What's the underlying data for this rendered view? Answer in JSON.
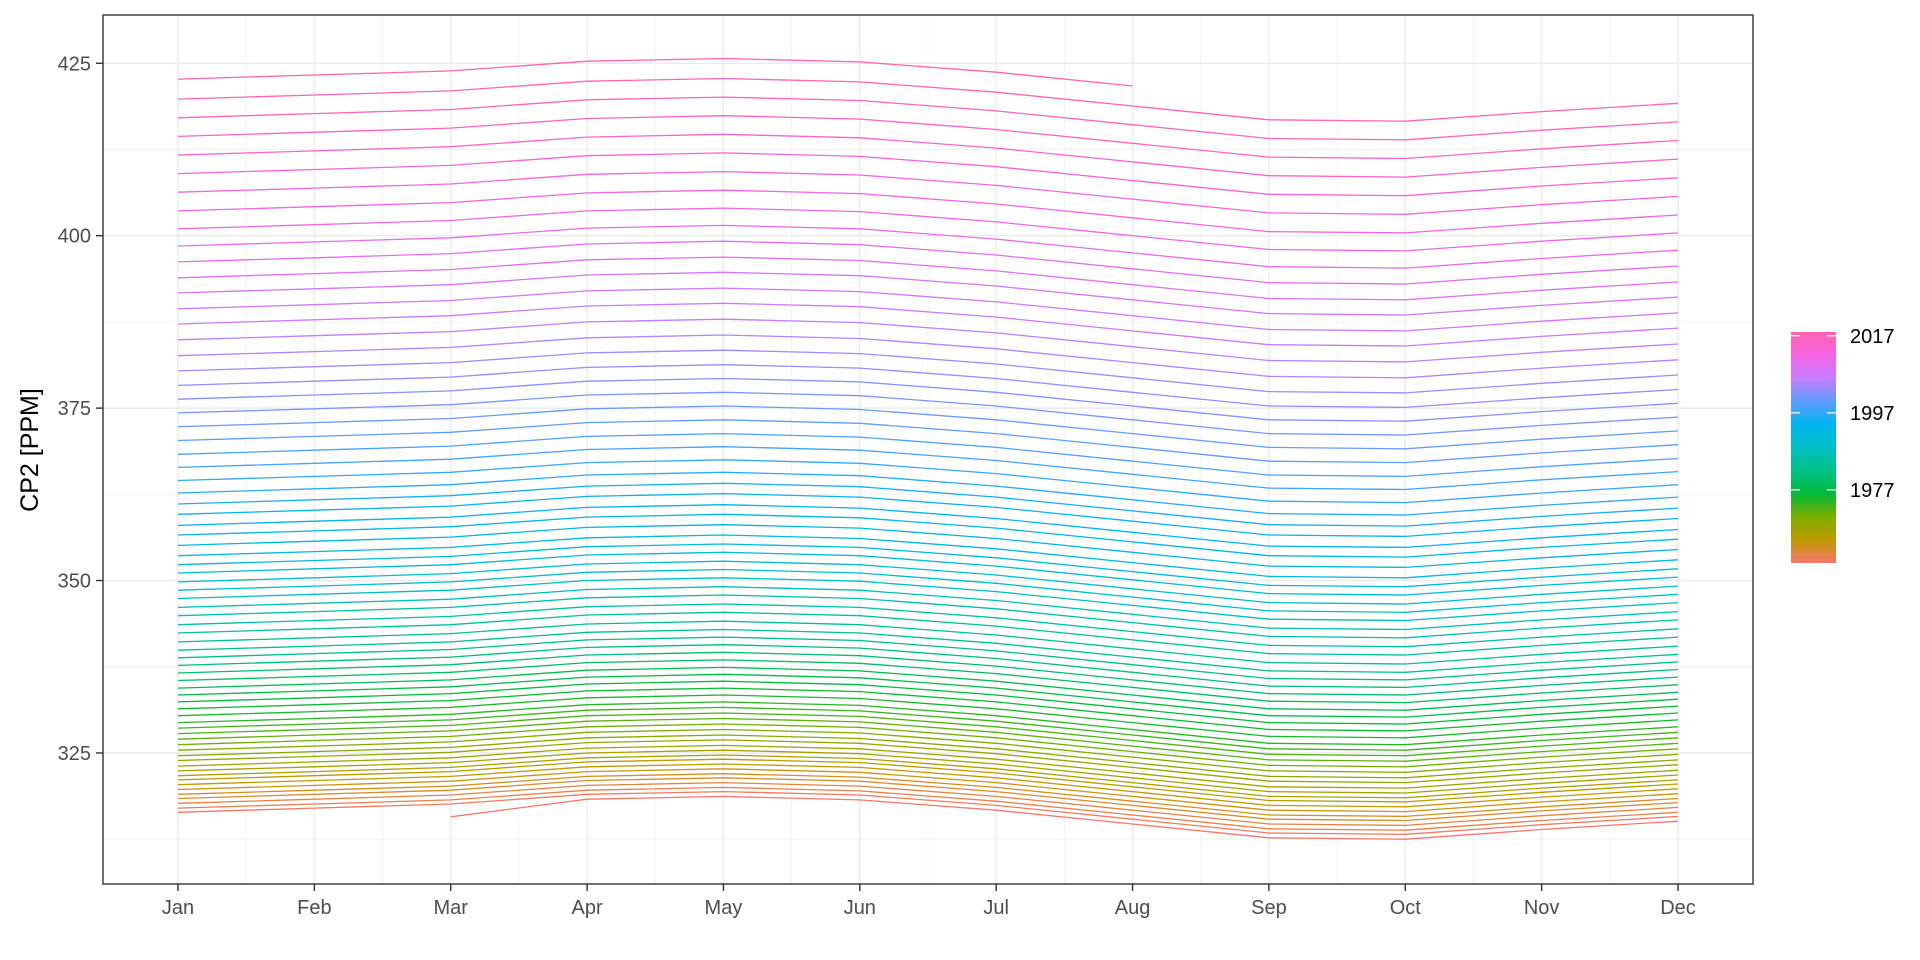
{
  "chart_data": {
    "type": "line",
    "title": "",
    "xlabel": "",
    "ylabel": "CP2 [PPM]",
    "categories": [
      "Jan",
      "Feb",
      "Mar",
      "Apr",
      "May",
      "Jun",
      "Jul",
      "Aug",
      "Sep",
      "Oct",
      "Nov",
      "Dec"
    ],
    "ylim": [
      306,
      432
    ],
    "yticks": [
      325,
      350,
      375,
      400,
      425
    ],
    "grid": true,
    "legend": {
      "type": "colorbar",
      "placement": "right",
      "range": [
        1958,
        2018
      ],
      "labels": [
        "2017",
        "1997",
        "1977"
      ],
      "label_values": [
        2017,
        1997,
        1977
      ],
      "colors": [
        "#F8766D",
        "#C09B00",
        "#7CAE00",
        "#00BA38",
        "#00C08B",
        "#00BFC4",
        "#00B4F0",
        "#619CFF",
        "#C77CFF",
        "#F564E3",
        "#FF64B0"
      ]
    },
    "seasonal_offsets": [
      0.0,
      0.6,
      1.2,
      2.6,
      3.0,
      2.5,
      1.0,
      -1.0,
      -3.0,
      -3.2,
      -1.8,
      -0.6
    ],
    "series_jan_values": [
      315.7,
      316.4,
      317.0,
      317.7,
      318.4,
      319.0,
      319.7,
      320.4,
      321.1,
      321.7,
      322.4,
      323.1,
      323.9,
      324.6,
      325.4,
      326.2,
      327.0,
      327.8,
      328.6,
      329.4,
      330.4,
      331.4,
      332.4,
      333.4,
      334.4,
      335.5,
      336.6,
      337.7,
      338.8,
      339.9,
      341.1,
      342.4,
      343.6,
      344.9,
      346.1,
      347.4,
      348.6,
      349.8,
      351.1,
      352.3,
      353.6,
      355.1,
      356.6,
      358.0,
      359.6,
      361.1,
      362.7,
      364.5,
      366.4,
      368.3,
      370.3,
      372.3,
      374.3,
      376.3,
      378.3,
      380.4,
      382.6,
      384.9,
      387.2,
      389.4,
      391.7,
      393.9,
      396.2,
      398.5,
      401.0,
      403.6,
      406.3,
      409.0,
      411.7,
      414.4,
      417.1,
      419.8,
      422.7
    ],
    "partial_series": {
      "first_start_month_index": 2,
      "last_end_month_index": 7
    }
  }
}
